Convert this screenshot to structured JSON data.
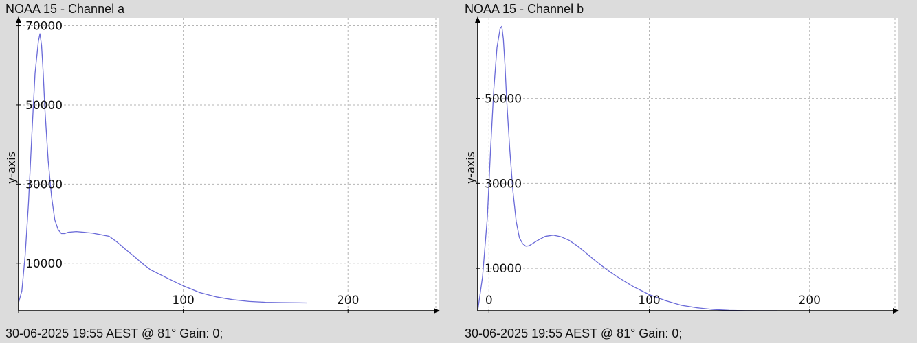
{
  "panels": [
    {
      "title": "NOAA 15 - Channel a",
      "footer": "30-06-2025 19:55 AEST @ 81° Gain: 0;"
    },
    {
      "title": "NOAA 15 - Channel b",
      "footer": "30-06-2025 19:55 AEST @ 81° Gain: 0;"
    }
  ],
  "colors": {
    "background": "#dcdcdc",
    "plot_background": "#ffffff",
    "line": "#6a6ad8",
    "grid": "#b5b5b5",
    "axis": "#000000"
  },
  "chart_data": [
    {
      "type": "line",
      "title": "NOAA 15 - Channel a",
      "xlabel": "",
      "ylabel": "y-axis",
      "xlim": [
        0,
        255
      ],
      "ylim": [
        -2000,
        72000
      ],
      "x_ticks": [
        0,
        100,
        200
      ],
      "x_tick_labels": [
        "",
        "100",
        "200"
      ],
      "y_ticks": [
        10000,
        30000,
        50000,
        70000
      ],
      "y_tick_labels": [
        "10000",
        "30000",
        "50000",
        "70000"
      ],
      "grid": true,
      "series": [
        {
          "x": [
            0,
            2,
            4,
            6,
            8,
            10,
            12,
            13,
            14,
            15,
            16,
            18,
            20,
            22,
            24,
            26,
            28,
            30,
            35,
            40,
            45,
            50,
            55,
            60,
            65,
            70,
            75,
            80,
            90,
            100,
            110,
            120,
            130,
            140,
            150,
            160,
            170,
            175
          ],
          "y": [
            0,
            3000,
            12000,
            25000,
            42000,
            58000,
            66000,
            68000,
            65000,
            58000,
            49000,
            36000,
            27000,
            21000,
            18500,
            17500,
            17500,
            17800,
            18000,
            17800,
            17600,
            17200,
            16800,
            15300,
            13500,
            11800,
            10000,
            8400,
            6300,
            4300,
            2600,
            1500,
            800,
            350,
            150,
            80,
            30,
            0
          ]
        }
      ]
    },
    {
      "type": "line",
      "title": "NOAA 15 - Channel b",
      "xlabel": "",
      "ylabel": "y-axis",
      "xlim": [
        -7,
        255
      ],
      "ylim": [
        0,
        69000
      ],
      "x_ticks": [
        0,
        100,
        200
      ],
      "x_tick_labels": [
        "0",
        "100",
        "200"
      ],
      "y_ticks": [
        10000,
        30000,
        50000
      ],
      "y_tick_labels": [
        "10000",
        "30000",
        "50000"
      ],
      "grid": true,
      "series": [
        {
          "x": [
            -7,
            -4,
            -1,
            1,
            3,
            5,
            7,
            8,
            9,
            10,
            11,
            13,
            15,
            17,
            19,
            21,
            23,
            25,
            30,
            35,
            40,
            45,
            50,
            55,
            60,
            65,
            70,
            75,
            80,
            90,
            100,
            110,
            120,
            130,
            140,
            150,
            160,
            170,
            180
          ],
          "y": [
            0,
            8000,
            22000,
            38000,
            52000,
            62000,
            66500,
            67000,
            64000,
            58000,
            50000,
            38000,
            28000,
            21000,
            17200,
            15800,
            15200,
            15300,
            16500,
            17500,
            17800,
            17400,
            16600,
            15300,
            13800,
            12200,
            10700,
            9300,
            8000,
            5700,
            3800,
            2400,
            1300,
            700,
            300,
            100,
            20,
            0,
            0
          ]
        }
      ]
    }
  ]
}
